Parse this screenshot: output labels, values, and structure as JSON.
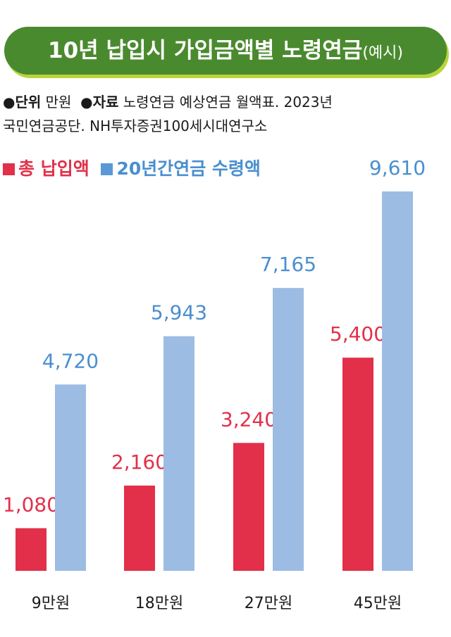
{
  "header": {
    "title": "10년 납입시 가입금액별 노령연금",
    "title_suffix": "(예시)"
  },
  "info": {
    "unit_label": "●단위",
    "unit_value": "만원",
    "source_label": "●자료",
    "source_line1": "노령연금 예상연금 월액표. 2023년",
    "source_line2": "국민연금공단. NH투자증권100세시대연구소"
  },
  "colors": {
    "red": "#e2304a",
    "blue": "#9dbce3",
    "blue_label": "#4a8fcf",
    "banner": "#4a8a2f"
  },
  "chart_data": {
    "type": "bar",
    "categories": [
      "9만원",
      "18만원",
      "27만원",
      "45만원"
    ],
    "series": [
      {
        "name": "총 납입액",
        "values": [
          1080,
          2160,
          3240,
          5400
        ],
        "labels": [
          "1,080",
          "2,160",
          "3,240",
          "5,400"
        ]
      },
      {
        "name": "20년간연금 수령액",
        "values": [
          4720,
          5943,
          7165,
          9610
        ],
        "labels": [
          "4,720",
          "5,943",
          "7,165",
          "9,610"
        ]
      }
    ],
    "ylim": [
      0,
      10000
    ],
    "grid": false,
    "legend": "top-left"
  }
}
